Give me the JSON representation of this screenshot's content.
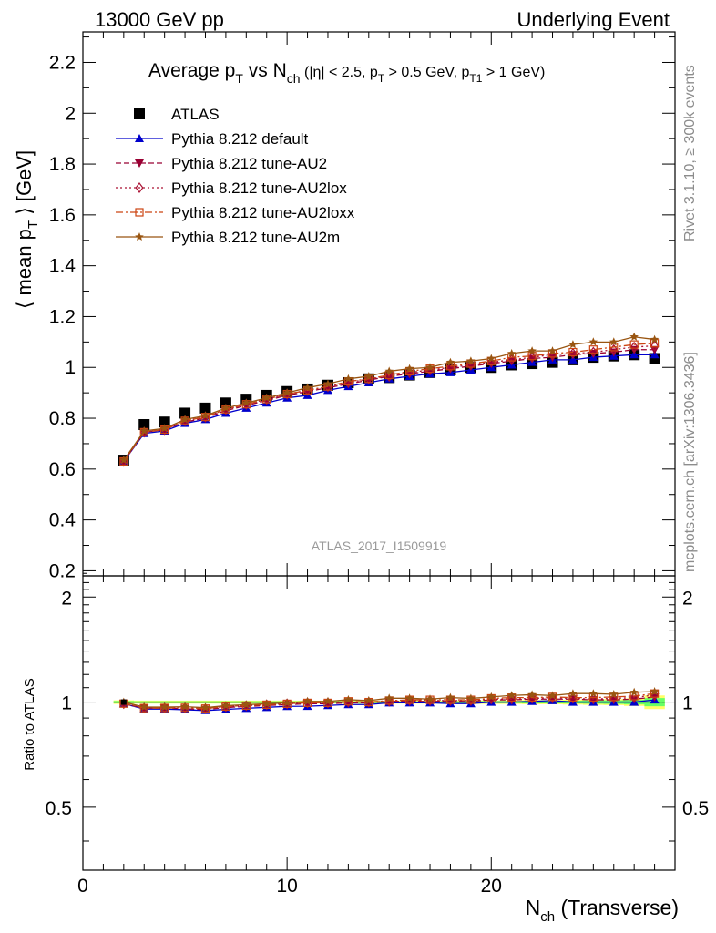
{
  "header": {
    "left": "13000 GeV pp",
    "right": "Underlying Event"
  },
  "side": {
    "rivet": "Rivet 3.1.10, ≥ 300k events",
    "mcplots": "mcplots.cern.ch [arXiv:1306.3436]"
  },
  "watermark": "ATLAS_2017_I1509919",
  "chart_data": [
    {
      "type": "scatter",
      "title": "Average p_T vs N_ch (|η| < 2.5, p_T > 0.5 GeV, p_T1 > 1 GeV)",
      "ylabel": "⟨ mean p_T ⟩ [GeV]",
      "xlim": [
        0,
        29
      ],
      "ylim": [
        0.18,
        2.32
      ],
      "yticks": [
        0.2,
        0.4,
        0.6,
        0.8,
        1,
        1.2,
        1.4,
        1.6,
        1.8,
        2,
        2.2
      ],
      "legend_position": "top-left",
      "x": [
        2,
        3,
        4,
        5,
        6,
        7,
        8,
        9,
        10,
        11,
        12,
        13,
        14,
        15,
        16,
        17,
        18,
        19,
        20,
        21,
        22,
        23,
        24,
        25,
        26,
        27,
        28
      ],
      "series": [
        {
          "name": "ATLAS",
          "color": "#000000",
          "marker": "square",
          "values": [
            0.635,
            0.775,
            0.785,
            0.82,
            0.84,
            0.86,
            0.875,
            0.89,
            0.905,
            0.915,
            0.93,
            0.94,
            0.955,
            0.96,
            0.97,
            0.98,
            0.99,
            1.0,
            1.0,
            1.01,
            1.015,
            1.02,
            1.03,
            1.04,
            1.045,
            1.05,
            1.035
          ]
        },
        {
          "name": "Pythia 8.212 default",
          "color": "#0000cc",
          "marker": "triangle-up",
          "dash": "",
          "values": [
            0.63,
            0.74,
            0.75,
            0.78,
            0.795,
            0.82,
            0.84,
            0.86,
            0.88,
            0.89,
            0.91,
            0.925,
            0.94,
            0.955,
            0.965,
            0.975,
            0.98,
            0.99,
            1.0,
            1.01,
            1.02,
            1.03,
            1.03,
            1.04,
            1.045,
            1.05,
            1.05
          ]
        },
        {
          "name": "Pythia 8.212 tune-AU2",
          "color": "#990033",
          "marker": "triangle-down",
          "dash": "6,3",
          "values": [
            0.63,
            0.745,
            0.755,
            0.785,
            0.8,
            0.83,
            0.85,
            0.87,
            0.89,
            0.905,
            0.92,
            0.935,
            0.95,
            0.965,
            0.975,
            0.985,
            0.995,
            1.005,
            1.015,
            1.025,
            1.035,
            1.04,
            1.05,
            1.055,
            1.06,
            1.07,
            1.07
          ]
        },
        {
          "name": "Pythia 8.212 tune-AU2lox",
          "color": "#aa1133",
          "marker": "diamond-open",
          "dash": "2,3",
          "values": [
            0.63,
            0.745,
            0.755,
            0.79,
            0.805,
            0.835,
            0.855,
            0.875,
            0.895,
            0.91,
            0.925,
            0.94,
            0.955,
            0.965,
            0.98,
            0.99,
            1.0,
            1.01,
            1.02,
            1.03,
            1.04,
            1.05,
            1.055,
            1.06,
            1.07,
            1.08,
            1.085
          ]
        },
        {
          "name": "Pythia 8.212 tune-AU2loxx",
          "color": "#cc4411",
          "marker": "square-open",
          "dash": "8,3,2,3",
          "values": [
            0.63,
            0.745,
            0.755,
            0.79,
            0.805,
            0.835,
            0.855,
            0.875,
            0.895,
            0.91,
            0.925,
            0.945,
            0.955,
            0.97,
            0.985,
            0.995,
            1.005,
            1.015,
            1.025,
            1.04,
            1.045,
            1.055,
            1.06,
            1.07,
            1.08,
            1.09,
            1.095
          ]
        },
        {
          "name": "Pythia 8.212 tune-AU2m",
          "color": "#995511",
          "marker": "star",
          "dash": "",
          "values": [
            0.635,
            0.75,
            0.76,
            0.795,
            0.81,
            0.84,
            0.86,
            0.88,
            0.9,
            0.92,
            0.935,
            0.955,
            0.965,
            0.985,
            0.995,
            1.0,
            1.02,
            1.025,
            1.035,
            1.055,
            1.065,
            1.065,
            1.09,
            1.1,
            1.1,
            1.12,
            1.11
          ]
        }
      ]
    },
    {
      "type": "scatter",
      "ylabel": "Ratio to ATLAS",
      "xlabel": "N_ch (Transverse)",
      "xlim": [
        0,
        29
      ],
      "ylim": [
        0.33,
        2.3
      ],
      "yscale": "log",
      "yticks": [
        0.5,
        1,
        2
      ],
      "xticks": [
        0,
        10,
        20
      ],
      "x": [
        2,
        3,
        4,
        5,
        6,
        7,
        8,
        9,
        10,
        11,
        12,
        13,
        14,
        15,
        16,
        17,
        18,
        19,
        20,
        21,
        22,
        23,
        24,
        25,
        26,
        27,
        28
      ],
      "band": {
        "color": "#ffff66",
        "inner_color": "#66ff66",
        "halfwidth": [
          0.012,
          0.01,
          0.01,
          0.01,
          0.01,
          0.01,
          0.01,
          0.01,
          0.01,
          0.01,
          0.01,
          0.01,
          0.01,
          0.01,
          0.01,
          0.01,
          0.01,
          0.012,
          0.012,
          0.012,
          0.014,
          0.014,
          0.016,
          0.018,
          0.02,
          0.025,
          0.045
        ]
      },
      "series": [
        {
          "name": "Pythia 8.212 default",
          "values": [
            0.99,
            0.955,
            0.955,
            0.951,
            0.946,
            0.953,
            0.96,
            0.966,
            0.972,
            0.973,
            0.978,
            0.984,
            0.984,
            0.995,
            0.995,
            0.995,
            0.99,
            0.99,
            1.0,
            1.0,
            1.005,
            1.01,
            1.0,
            1.0,
            1.0,
            1.0,
            1.015
          ]
        },
        {
          "name": "Pythia 8.212 tune-AU2",
          "values": [
            0.99,
            0.961,
            0.962,
            0.957,
            0.952,
            0.965,
            0.971,
            0.978,
            0.983,
            0.989,
            0.989,
            0.995,
            0.995,
            1.005,
            1.005,
            1.005,
            1.005,
            1.005,
            1.015,
            1.015,
            1.02,
            1.02,
            1.02,
            1.015,
            1.015,
            1.02,
            1.034
          ]
        },
        {
          "name": "Pythia 8.212 tune-AU2lox",
          "values": [
            0.99,
            0.961,
            0.962,
            0.963,
            0.958,
            0.971,
            0.977,
            0.983,
            0.989,
            0.995,
            0.995,
            1.0,
            1.0,
            1.005,
            1.01,
            1.01,
            1.01,
            1.01,
            1.02,
            1.02,
            1.025,
            1.03,
            1.025,
            1.02,
            1.025,
            1.03,
            1.048
          ]
        },
        {
          "name": "Pythia 8.212 tune-AU2loxx",
          "values": [
            0.99,
            0.961,
            0.962,
            0.963,
            0.958,
            0.971,
            0.977,
            0.983,
            0.989,
            0.995,
            0.995,
            1.005,
            1.0,
            1.01,
            1.015,
            1.015,
            1.015,
            1.015,
            1.025,
            1.03,
            1.03,
            1.035,
            1.03,
            1.03,
            1.035,
            1.04,
            1.058
          ]
        },
        {
          "name": "Pythia 8.212 tune-AU2m",
          "values": [
            1.0,
            0.968,
            0.968,
            0.97,
            0.964,
            0.977,
            0.983,
            0.989,
            0.994,
            1.005,
            1.005,
            1.016,
            1.01,
            1.026,
            1.026,
            1.02,
            1.03,
            1.025,
            1.035,
            1.045,
            1.05,
            1.044,
            1.058,
            1.058,
            1.053,
            1.067,
            1.072
          ]
        }
      ]
    }
  ]
}
